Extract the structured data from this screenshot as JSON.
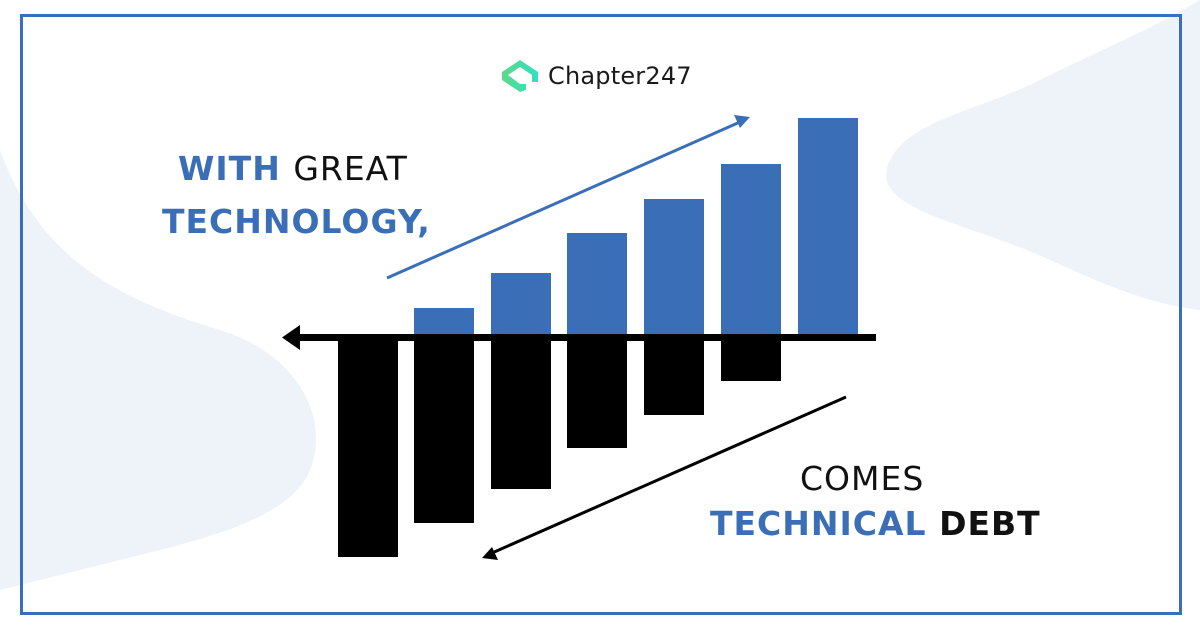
{
  "brand": {
    "name": "Chapter247",
    "icon": "chapter247-logo-icon",
    "logo_color": "#4fe0a0"
  },
  "headline_top": {
    "line1_accent": "WITH",
    "line1_rest": "GREAT",
    "line2": "TECHNOLOGY,"
  },
  "headline_bottom": {
    "line1": "COMES",
    "line2_accent": "TECHNICAL",
    "line2_rest": "DEBT"
  },
  "colors": {
    "accent": "#3a6fb8",
    "debt": "#000000",
    "frame": "#3a6fb8",
    "background_shape": "#eef2f9"
  }
}
